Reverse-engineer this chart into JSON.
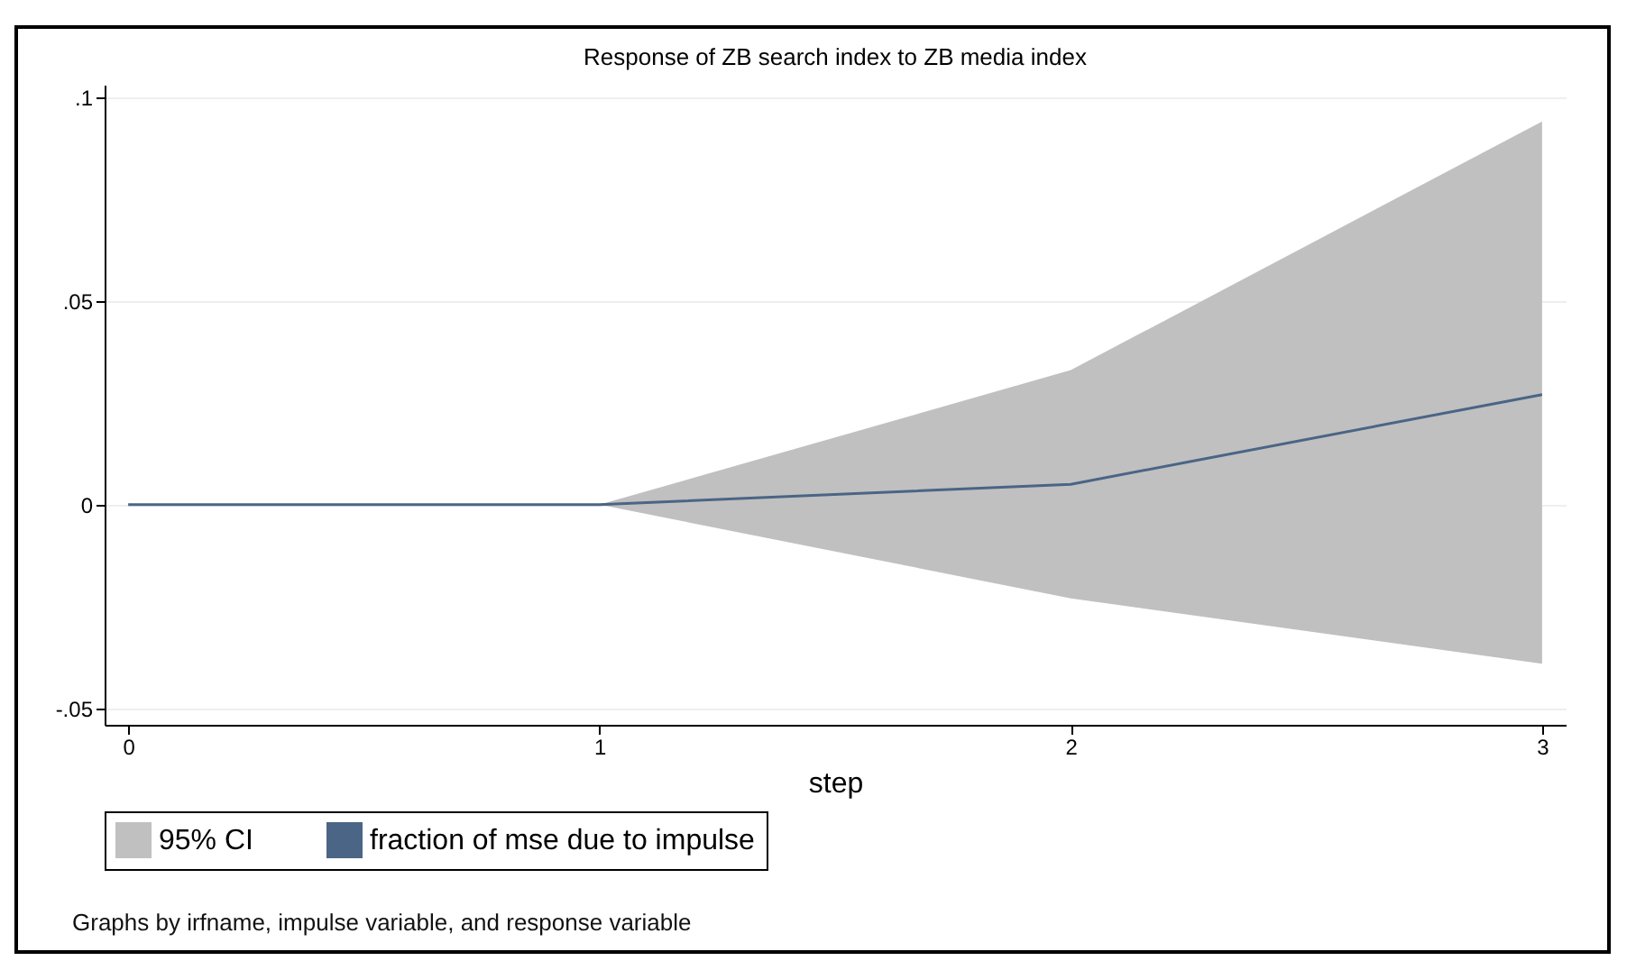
{
  "chart_data": {
    "type": "line",
    "title": "Response of ZB search index to ZB media index",
    "xlabel": "step",
    "x": [
      0,
      1,
      2,
      3
    ],
    "series": [
      {
        "name": "fraction of mse due to impulse",
        "color": "#4a6585",
        "values": [
          0,
          0,
          0.005,
          0.027
        ],
        "lower": [
          0,
          0,
          -0.023,
          -0.039
        ],
        "upper": [
          0,
          0,
          0.033,
          0.094
        ]
      }
    ],
    "xlim": [
      -0.05,
      3.05
    ],
    "ylim": [
      -0.054,
      0.103
    ],
    "xticks": [
      0,
      1,
      2,
      3
    ],
    "yticks": [
      {
        "value": -0.05,
        "label": "-.05"
      },
      0,
      {
        "value": 0.05,
        "label": ".05"
      },
      {
        "value": 0.1,
        "label": ".1"
      }
    ],
    "grid": "y",
    "legend": "bottom",
    "annotations": [
      "95% CI",
      "Graphs by irfname, impulse variable, and response variable"
    ]
  }
}
